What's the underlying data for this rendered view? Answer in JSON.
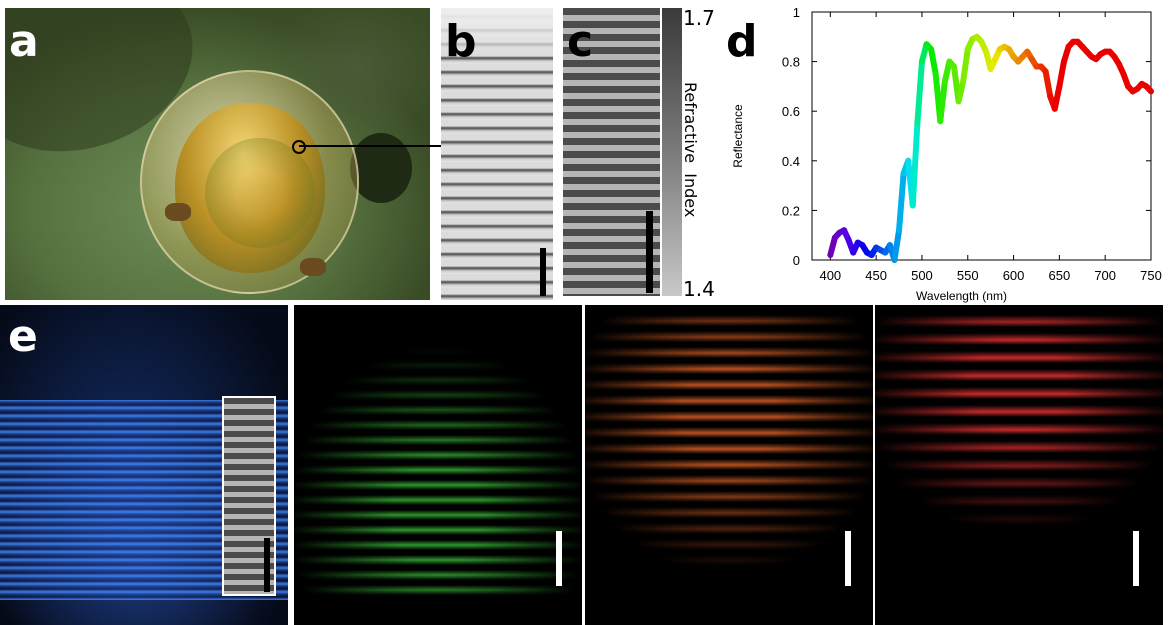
{
  "figure": {
    "panel_labels": {
      "a": "a",
      "b": "b",
      "c": "c",
      "d": "d",
      "e": "e"
    },
    "photo_description": "",
    "colorbar": {
      "title": "Refractive  Index",
      "max_label": "1.7",
      "min_label": "1.4"
    },
    "panel_e_colors": [
      "#2f6fe0",
      "#2fd02f",
      "#e8642a",
      "#e02a2a"
    ]
  },
  "chart_data": {
    "type": "line",
    "title": "",
    "xlabel": "Wavelength (nm)",
    "ylabel": "Reflectance",
    "xlim": [
      380,
      750
    ],
    "ylim": [
      0,
      1
    ],
    "xticks": [
      400,
      450,
      500,
      550,
      600,
      650,
      700,
      750
    ],
    "yticks": [
      0,
      0.2,
      0.4,
      0.6,
      0.8,
      1
    ],
    "ytick_labels": [
      "0",
      "0.2",
      "0.4",
      "0.6",
      "0.8",
      "1"
    ],
    "grid": false,
    "line_color_mode": "wavelength-spectrum",
    "series": [
      {
        "x": [
          400,
          405,
          410,
          415,
          420,
          425,
          430,
          435,
          440,
          445,
          450,
          455,
          460,
          465,
          470,
          475,
          480,
          485,
          490,
          495,
          500,
          505,
          510,
          515,
          520,
          525,
          530,
          535,
          540,
          545,
          550,
          555,
          560,
          565,
          570,
          575,
          580,
          585,
          590,
          595,
          600,
          605,
          610,
          615,
          620,
          625,
          630,
          635,
          640,
          645,
          650,
          655,
          660,
          665,
          670,
          675,
          680,
          685,
          690,
          695,
          700,
          705,
          710,
          715,
          720,
          725,
          730,
          735,
          740,
          745,
          750
        ],
        "values": [
          0.02,
          0.09,
          0.11,
          0.12,
          0.08,
          0.03,
          0.07,
          0.06,
          0.03,
          0.02,
          0.05,
          0.04,
          0.03,
          0.06,
          0.0,
          0.12,
          0.35,
          0.4,
          0.22,
          0.55,
          0.8,
          0.87,
          0.85,
          0.75,
          0.56,
          0.72,
          0.8,
          0.78,
          0.64,
          0.72,
          0.85,
          0.89,
          0.9,
          0.88,
          0.84,
          0.77,
          0.81,
          0.85,
          0.86,
          0.85,
          0.82,
          0.8,
          0.82,
          0.84,
          0.81,
          0.78,
          0.78,
          0.76,
          0.66,
          0.61,
          0.7,
          0.8,
          0.86,
          0.88,
          0.88,
          0.86,
          0.84,
          0.82,
          0.81,
          0.83,
          0.84,
          0.84,
          0.82,
          0.79,
          0.75,
          0.7,
          0.68,
          0.69,
          0.71,
          0.7,
          0.68
        ]
      }
    ]
  }
}
